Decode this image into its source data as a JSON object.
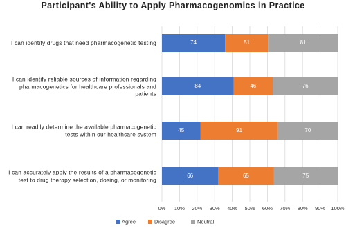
{
  "chart_data": {
    "type": "bar",
    "orientation": "horizontal",
    "stacked": "percent",
    "title": "Participant's Ability to Apply Pharmacogenomics in Practice",
    "categories": [
      "I can identify drugs that need pharmacogenetic testing",
      "I can identify reliable sources of information regarding pharmacogenetics for healthcare professionals and patients",
      "I can readily determine the available pharmacogenetic tests within our healthcare system",
      "I can accurately apply the results of a pharmacogenetic test to drug therapy selection, dosing, or monitoring"
    ],
    "series": [
      {
        "name": "Agree",
        "color": "#4472c4",
        "values": [
          74,
          84,
          45,
          66
        ]
      },
      {
        "name": "Disagree",
        "color": "#ed7d31",
        "values": [
          51,
          46,
          91,
          65
        ]
      },
      {
        "name": "Neutral",
        "color": "#a5a5a5",
        "values": [
          81,
          76,
          70,
          75
        ]
      }
    ],
    "xlim": [
      0,
      100
    ],
    "xticks": [
      {
        "value": 0,
        "label": "0%"
      },
      {
        "value": 10,
        "label": "10%"
      },
      {
        "value": 20,
        "label": "20%"
      },
      {
        "value": 30,
        "label": "30%"
      },
      {
        "value": 40,
        "label": "40%"
      },
      {
        "value": 50,
        "label": "50%"
      },
      {
        "value": 60,
        "label": "60%"
      },
      {
        "value": 70,
        "label": "70%"
      },
      {
        "value": 80,
        "label": "80%"
      },
      {
        "value": 90,
        "label": "90%"
      },
      {
        "value": 100,
        "label": "100%"
      }
    ],
    "grid": true,
    "legend": "bottom"
  }
}
